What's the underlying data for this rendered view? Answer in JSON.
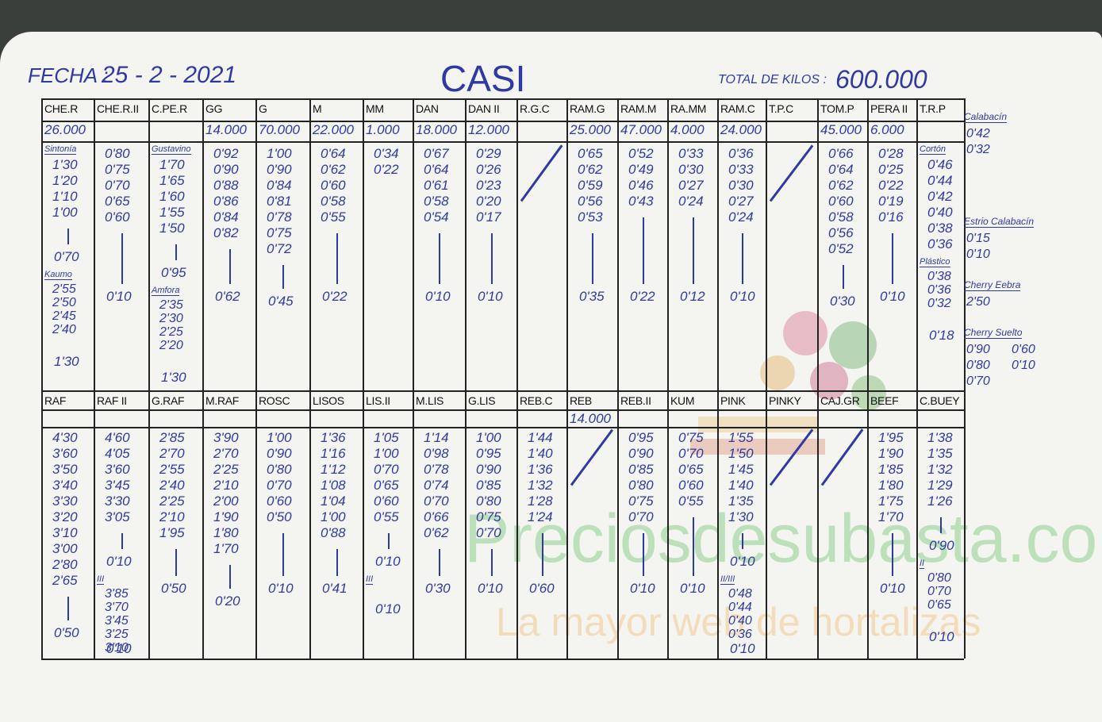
{
  "header": {
    "fecha_label": "FECHA :",
    "fecha_value": "25 - 2 - 2021",
    "title": "CASI",
    "total_label": "TOTAL DE KILOS :",
    "total_value": "600.000"
  },
  "top_columns": [
    {
      "name": "CHE.R",
      "kilos": "26.000",
      "sub": "Sintonía",
      "values": [
        "1'30",
        "1'20",
        "1'10",
        "1'00"
      ],
      "tail": "0'70",
      "sub2": "Kaumo",
      "values2": [
        "2'55",
        "2'50",
        "2'45",
        "2'40"
      ],
      "tail2": "1'30"
    },
    {
      "name": "CHE.R.II",
      "kilos": "",
      "values": [
        "0'80",
        "0'75",
        "0'70",
        "0'65",
        "0'60"
      ],
      "tail": "0'10"
    },
    {
      "name": "C.PE.R",
      "kilos": "",
      "sub": "Gustavino",
      "values": [
        "1'70",
        "1'65",
        "1'60",
        "1'55",
        "1'50"
      ],
      "tail": "0'95",
      "sub2": "Amfora",
      "values2": [
        "2'35",
        "2'30",
        "2'25",
        "2'20"
      ],
      "tail2": "1'30"
    },
    {
      "name": "GG",
      "kilos": "14.000",
      "values": [
        "0'92",
        "0'90",
        "0'88",
        "0'86",
        "0'84",
        "0'82"
      ],
      "tail": "0'62"
    },
    {
      "name": "G",
      "kilos": "70.000",
      "values": [
        "1'00",
        "0'90",
        "0'84",
        "0'81",
        "0'78",
        "0'75",
        "0'72"
      ],
      "tail": "0'45"
    },
    {
      "name": "M",
      "kilos": "22.000",
      "values": [
        "0'64",
        "0'62",
        "0'60",
        "0'58",
        "0'55"
      ],
      "tail": "0'22"
    },
    {
      "name": "MM",
      "kilos": "1.000",
      "values": [
        "0'34",
        "0'22"
      ],
      "tail": ""
    },
    {
      "name": "DAN",
      "kilos": "18.000",
      "values": [
        "0'67",
        "0'64",
        "0'61",
        "0'58",
        "0'54"
      ],
      "tail": "0'10"
    },
    {
      "name": "DAN II",
      "kilos": "12.000",
      "values": [
        "0'29",
        "0'26",
        "0'23",
        "0'20",
        "0'17"
      ],
      "tail": "0'10"
    },
    {
      "name": "R.G.C",
      "kilos": "",
      "values": [],
      "tail": ""
    },
    {
      "name": "RAM.G",
      "kilos": "25.000",
      "values": [
        "0'65",
        "0'62",
        "0'59",
        "0'56",
        "0'53"
      ],
      "tail": "0'35"
    },
    {
      "name": "RAM.M",
      "kilos": "47.000",
      "values": [
        "0'52",
        "0'49",
        "0'46",
        "0'43"
      ],
      "tail": "0'22"
    },
    {
      "name": "RA.MM",
      "kilos": "4.000",
      "values": [
        "0'33",
        "0'30",
        "0'27",
        "0'24"
      ],
      "tail": "0'12"
    },
    {
      "name": "RAM.C",
      "kilos": "24.000",
      "values": [
        "0'36",
        "0'33",
        "0'30",
        "0'27",
        "0'24"
      ],
      "tail": "0'10"
    },
    {
      "name": "T.P.C",
      "kilos": "",
      "values": [],
      "tail": ""
    },
    {
      "name": "TOM.P",
      "kilos": "45.000",
      "values": [
        "0'66",
        "0'64",
        "0'62",
        "0'60",
        "0'58",
        "0'56",
        "0'52"
      ],
      "tail": "0'30"
    },
    {
      "name": "PERA II",
      "kilos": "6.000",
      "values": [
        "0'28",
        "0'25",
        "0'22",
        "0'19",
        "0'16"
      ],
      "tail": "0'10"
    },
    {
      "name": "T.R.P",
      "kilos": "",
      "sub": "Cortón",
      "values": [
        "0'46",
        "0'44",
        "0'42",
        "0'40",
        "0'38",
        "0'36"
      ],
      "tail": "",
      "sub2": "Plástico",
      "values2": [
        "0'38",
        "0'36",
        "0'32"
      ],
      "tail2": "0'18"
    }
  ],
  "bottom_columns": [
    {
      "name": "RAF",
      "kilos": "",
      "values": [
        "4'30",
        "3'60",
        "3'50",
        "3'40",
        "3'30",
        "3'20",
        "3'10",
        "3'00",
        "2'80",
        "2'65"
      ],
      "tail": "0'50"
    },
    {
      "name": "RAF II",
      "kilos": "",
      "values": [
        "4'60",
        "4'05",
        "3'60",
        "3'45",
        "3'30",
        "3'05"
      ],
      "tail": "0'10",
      "sub2": "III",
      "values2": [
        "3'85",
        "3'70",
        "3'45",
        "3'25",
        "3'10"
      ],
      "tail2": "0'10"
    },
    {
      "name": "G.RAF",
      "kilos": "",
      "values": [
        "2'85",
        "2'70",
        "2'55",
        "2'40",
        "2'25",
        "2'10",
        "1'95"
      ],
      "tail": "0'50"
    },
    {
      "name": "M.RAF",
      "kilos": "",
      "values": [
        "3'90",
        "2'70",
        "2'25",
        "2'10",
        "2'00",
        "1'90",
        "1'80",
        "1'70"
      ],
      "tail": "0'20"
    },
    {
      "name": "ROSC",
      "kilos": "",
      "values": [
        "1'00",
        "0'90",
        "0'80",
        "0'70",
        "0'60",
        "0'50"
      ],
      "tail": "0'10"
    },
    {
      "name": "LISOS",
      "kilos": "",
      "values": [
        "1'36",
        "1'16",
        "1'12",
        "1'08",
        "1'04",
        "1'00",
        "0'88"
      ],
      "tail": "0'41"
    },
    {
      "name": "LIS.II",
      "kilos": "",
      "values": [
        "1'05",
        "1'00",
        "0'70",
        "0'65",
        "0'60",
        "0'55"
      ],
      "tail": "0'10",
      "sub2": "III",
      "values2": [],
      "tail2": "0'10"
    },
    {
      "name": "M.LIS",
      "kilos": "",
      "values": [
        "1'14",
        "0'98",
        "0'78",
        "0'74",
        "0'70",
        "0'66",
        "0'62"
      ],
      "tail": "0'30"
    },
    {
      "name": "G.LIS",
      "kilos": "",
      "values": [
        "1'00",
        "0'95",
        "0'90",
        "0'85",
        "0'80",
        "0'75",
        "0'70"
      ],
      "tail": "0'10"
    },
    {
      "name": "REB.C",
      "kilos": "",
      "values": [
        "1'44",
        "1'40",
        "1'36",
        "1'32",
        "1'28",
        "1'24"
      ],
      "tail": "0'60"
    },
    {
      "name": "REB",
      "kilos": "14.000",
      "values": [],
      "tail": ""
    },
    {
      "name": "REB.II",
      "kilos": "",
      "values": [
        "0'95",
        "0'90",
        "0'85",
        "0'80",
        "0'75",
        "0'70"
      ],
      "tail": "0'10"
    },
    {
      "name": "KUM",
      "kilos": "",
      "values": [
        "0'75",
        "0'70",
        "0'65",
        "0'60",
        "0'55"
      ],
      "tail": "0'10"
    },
    {
      "name": "PINK",
      "kilos": "",
      "values": [
        "1'55",
        "1'50",
        "1'45",
        "1'40",
        "1'35",
        "1'30"
      ],
      "tail": "0'10",
      "sub2": "II/III",
      "values2": [
        "0'48",
        "0'44",
        "0'40",
        "0'36"
      ],
      "tail2": "0'10"
    },
    {
      "name": "PINKY",
      "kilos": "",
      "values": [],
      "tail": ""
    },
    {
      "name": "CAJ.GR",
      "kilos": "",
      "values": [],
      "tail": ""
    },
    {
      "name": "BEEF",
      "kilos": "",
      "values": [
        "1'95",
        "1'90",
        "1'85",
        "1'80",
        "1'75",
        "1'70"
      ],
      "tail": "0'10"
    },
    {
      "name": "C.BUEY",
      "kilos": "",
      "values": [
        "1'38",
        "1'35",
        "1'32",
        "1'29",
        "1'26"
      ],
      "tail": "0'90",
      "sub2": "II",
      "values2": [
        "0'80",
        "0'70",
        "0'65"
      ],
      "tail2": "0'10"
    }
  ],
  "side_notes": [
    {
      "label": "Calabacín",
      "values": [
        "0'42",
        "0'32"
      ]
    },
    {
      "label": "Estrio Calabacín",
      "values": [
        "0'15",
        "0'10"
      ]
    },
    {
      "label": "Cherry Eebra",
      "values": [
        "2'50"
      ]
    },
    {
      "label": "Cherry Suelto",
      "values": [
        "0'90",
        "0'80",
        "0'70"
      ],
      "values_b": [
        "0'60",
        "0'10"
      ]
    }
  ],
  "watermark": {
    "site": "Preciosdesubasta.com",
    "slogan": "La mayor web de hortalizas"
  }
}
